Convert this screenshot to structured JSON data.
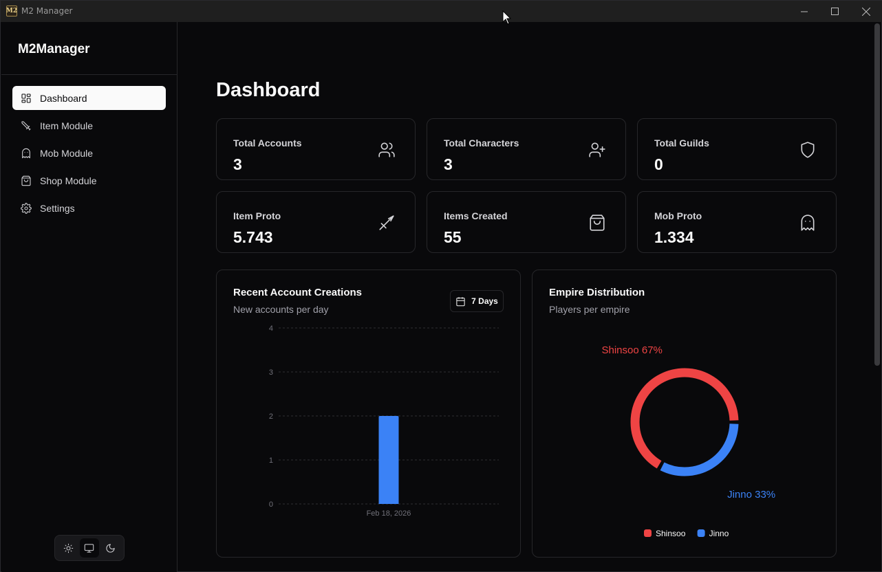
{
  "window": {
    "title": "M2 Manager",
    "app_icon_text": "M2"
  },
  "sidebar": {
    "brand": "M2Manager",
    "items": [
      {
        "label": "Dashboard",
        "icon": "dashboard-icon",
        "active": true
      },
      {
        "label": "Item Module",
        "icon": "sword-icon",
        "active": false
      },
      {
        "label": "Mob Module",
        "icon": "ghost-icon",
        "active": false
      },
      {
        "label": "Shop Module",
        "icon": "shopping-bag-icon",
        "active": false
      },
      {
        "label": "Settings",
        "icon": "gear-icon",
        "active": false
      }
    ],
    "theme_modes": [
      "light",
      "system",
      "dark"
    ],
    "theme_active": "system"
  },
  "main": {
    "title": "Dashboard",
    "stats": [
      {
        "label": "Total Accounts",
        "value": "3",
        "icon": "users-icon"
      },
      {
        "label": "Total Characters",
        "value": "3",
        "icon": "user-plus-icon"
      },
      {
        "label": "Total Guilds",
        "value": "0",
        "icon": "shield-icon"
      },
      {
        "label": "Item Proto",
        "value": "5.743",
        "icon": "sword-icon"
      },
      {
        "label": "Items Created",
        "value": "55",
        "icon": "shopping-bag-icon"
      },
      {
        "label": "Mob Proto",
        "value": "1.334",
        "icon": "ghost-icon"
      }
    ],
    "recent_panel": {
      "title": "Recent Account Creations",
      "subtitle": "New accounts per day",
      "range_label": "7 Days"
    },
    "empire_panel": {
      "title": "Empire Distribution",
      "subtitle": "Players per empire"
    }
  },
  "colors": {
    "shinsoo": "#ef4444",
    "jinno": "#3b82f6",
    "accent": "#fafafa"
  },
  "chart_data": [
    {
      "type": "bar",
      "title": "Recent Account Creations",
      "categories": [
        "Feb 18, 2026"
      ],
      "values": [
        2
      ],
      "ylim": [
        0,
        4
      ],
      "yticks": [
        "0",
        "1",
        "2",
        "3",
        "4"
      ],
      "grid": true,
      "bar_color": "#3b82f6"
    },
    {
      "type": "pie",
      "title": "Empire Distribution",
      "series": [
        {
          "name": "Shinsoo",
          "value": 67,
          "label": "Shinsoo 67%",
          "color": "#ef4444"
        },
        {
          "name": "Jinno",
          "value": 33,
          "label": "Jinno 33%",
          "color": "#3b82f6"
        }
      ],
      "legend": "bottom"
    }
  ]
}
